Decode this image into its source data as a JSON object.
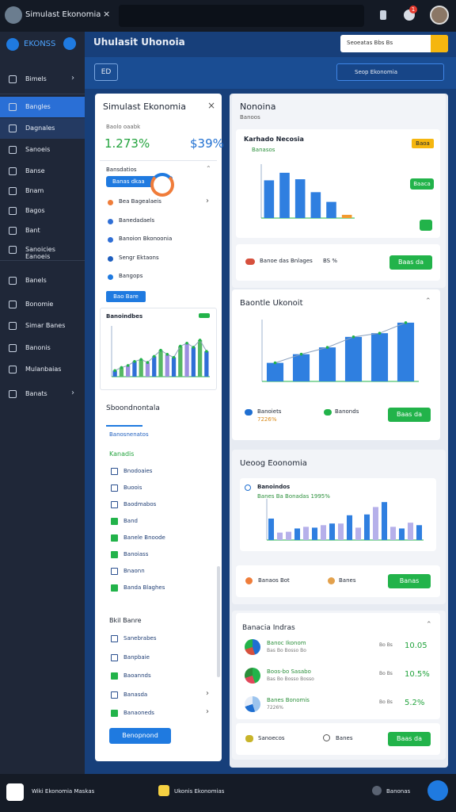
{
  "topbar": {
    "tab": "Simulast Ekonomia",
    "badge": "1"
  },
  "sidebar": {
    "brand": "EKONSS",
    "items": [
      "Bimels",
      "Bangles",
      "Dagnales",
      "Sanoeis",
      "Banse",
      "Bnam",
      "Bagos",
      "Bant",
      "Sanoicies Eanoeis",
      "Banels",
      "Bonomie",
      "Simar Banes",
      "Banonis",
      "Mulanbaias",
      "Banats"
    ]
  },
  "header": {
    "title": "Uhulasit Uhonoia",
    "search": "Seoeatas  Bbs Bs"
  },
  "toolbar": {
    "button": "ED",
    "search": "Seop Ekonomia"
  },
  "left_panel": {
    "title": "Simulast Ekonomia",
    "caption": "Baolo oaabk",
    "stat_green": "1.273%",
    "stat_blue": "$39%",
    "section": "Bansdatios",
    "pill": "Banas dkaa",
    "list": [
      "Bea Bagealaeis",
      "Banedadaels",
      "Banoion Bkonoonia",
      "Sengr Ektaons",
      "Bangops"
    ],
    "button": "Bao Bare",
    "mini_chart_title": "Banoindbes",
    "heading": "Sboondnontala",
    "tab": "Banosnenatos",
    "group": "Kanadis",
    "checklist": [
      {
        "label": "Bnodoaies",
        "checked": false
      },
      {
        "label": "Buoois",
        "checked": false
      },
      {
        "label": "Baodmabos",
        "checked": false
      },
      {
        "label": "Band",
        "checked": true
      },
      {
        "label": "Banele Bnoode",
        "checked": true
      },
      {
        "label": "Banoiass",
        "checked": true
      },
      {
        "label": "Bnaonn",
        "checked": false
      },
      {
        "label": "Banda Blaghes",
        "checked": true
      }
    ],
    "group2": "Bkil Banre",
    "checklist2": [
      {
        "label": "Sanebrabes",
        "checked": false
      },
      {
        "label": "Banpbaie",
        "checked": false
      },
      {
        "label": "Baoannds",
        "checked": true
      },
      {
        "label": "Banasda",
        "checked": false
      },
      {
        "label": "Banaoneds",
        "checked": true
      }
    ],
    "submit": "Benopnond"
  },
  "panels": [
    {
      "title": "Nonoina",
      "subtitle": "Banoos",
      "card_title": "Karhado Necosia",
      "card_sub": "Banasos",
      "tag": "Baoa",
      "card_button": "Baaca",
      "footer_label": "Banoe das Bnlages",
      "footer_value": "BS %",
      "button": "Baas da"
    },
    {
      "title": "Baontle Ukonoit",
      "legend": [
        "Banoiets",
        "Banonds"
      ],
      "legend_value": "7226%",
      "button": "Baas da"
    },
    {
      "title": "Ueoog Eoonomia",
      "card_title": "Banoindos",
      "card_sub": "Banes Ba Bonadas 1995%",
      "footer": [
        "Banaos Bot",
        "Banes"
      ],
      "button": "Banas"
    },
    {
      "title": "Banacia Indras",
      "rows": [
        {
          "label": "Banoc Ikonom",
          "sub": "Bas Bo Bosso Bo",
          "small": "Bo Bs",
          "value": "10.05"
        },
        {
          "label": "Boos-bo Sasabo",
          "sub": "Bas Bo Bosso Bosso",
          "small": "Bo Bs",
          "value": "10.5%"
        },
        {
          "label": "Banes Bonomis",
          "sub": "7226%",
          "small": "Bo Bs",
          "value": "5.2%"
        }
      ],
      "footer": [
        "Sanoecos",
        "Banes"
      ],
      "button": "Baas da"
    }
  ],
  "bottombar": {
    "left": "Wiki Ekonomia Maskas",
    "center": "Ukonis Ekonomias",
    "right": "Banonas"
  },
  "chart_data": [
    {
      "type": "bar",
      "values": [
        12,
        18,
        22,
        30,
        34,
        28,
        40,
        52,
        44,
        38,
        60,
        66,
        58,
        72,
        50
      ],
      "colors": [
        "#2f6fd6",
        "#56b865",
        "#9b8fe0",
        "#2f6fd6",
        "#56b865",
        "#9b8fe0",
        "#2f6fd6",
        "#56b865",
        "#9b8fe0",
        "#2f6fd6",
        "#56b865",
        "#9b8fe0",
        "#2f6fd6",
        "#56b865",
        "#2f6fd6"
      ],
      "line": true,
      "ylim": [
        0,
        100
      ]
    },
    {
      "type": "bar",
      "values": [
        70,
        84,
        72,
        48,
        30,
        6
      ],
      "colors": [
        "#2f7fe0",
        "#2f7fe0",
        "#2f7fe0",
        "#2f7fe0",
        "#2f7fe0",
        "#f29a2e"
      ],
      "line": false,
      "ylim": [
        0,
        100
      ]
    },
    {
      "type": "bar",
      "values": [
        30,
        44,
        55,
        72,
        78,
        95
      ],
      "colors": [
        "#2f7fe0",
        "#2f7fe0",
        "#2f7fe0",
        "#2f7fe0",
        "#2f7fe0",
        "#2f7fe0"
      ],
      "line": true,
      "ylim": [
        0,
        100
      ]
    },
    {
      "type": "bar",
      "values": [
        52,
        18,
        20,
        28,
        32,
        30,
        36,
        40,
        40,
        60,
        30,
        62,
        80,
        92,
        32,
        28,
        42,
        36
      ],
      "colors": [
        "#2f7fe0",
        "#b6b0ea",
        "#b6b0ea",
        "#2f7fe0",
        "#b6b0ea",
        "#2f7fe0",
        "#b6b0ea",
        "#2f7fe0",
        "#b6b0ea",
        "#2f7fe0",
        "#b6b0ea",
        "#2f7fe0",
        "#b6b0ea",
        "#2f7fe0",
        "#b6b0ea",
        "#2f7fe0",
        "#b6b0ea",
        "#2f7fe0"
      ],
      "line": false,
      "ylim": [
        0,
        100
      ]
    }
  ]
}
